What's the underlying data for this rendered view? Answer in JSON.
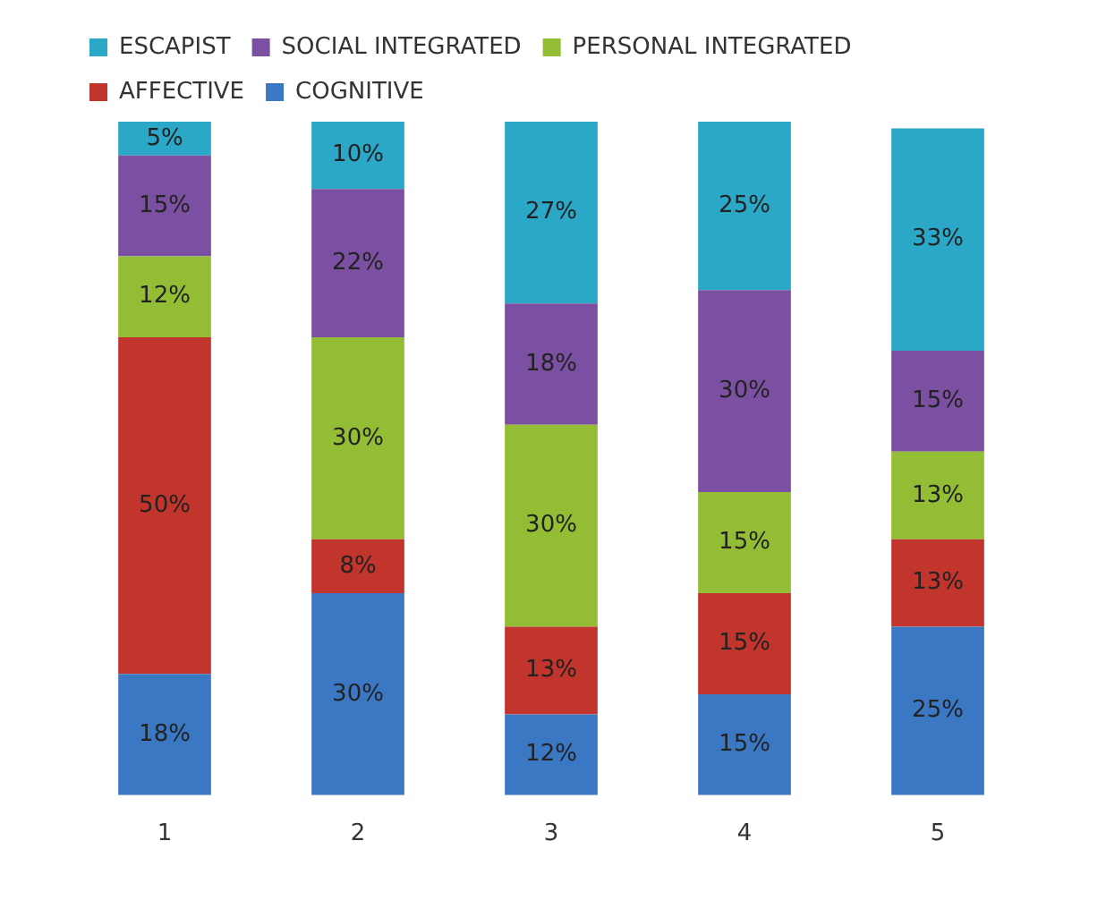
{
  "chart_data": {
    "type": "bar",
    "stacked": true,
    "categories": [
      "1",
      "2",
      "3",
      "4",
      "5"
    ],
    "legend": "top",
    "grid": false,
    "tick_labels": "x",
    "series": [
      {
        "name": "COGNITIVE",
        "color": "#3b78c4",
        "values": [
          18,
          30,
          12,
          15,
          25
        ],
        "value_labels": [
          "18%",
          "30%",
          "12%",
          "15%",
          "25%"
        ]
      },
      {
        "name": "AFFECTIVE",
        "color": "#c1352d",
        "values": [
          50,
          8,
          13,
          15,
          13
        ],
        "value_labels": [
          "50%",
          "8%",
          "13%",
          "15%",
          "13%"
        ]
      },
      {
        "name": "PERSONAL INTEGRATED",
        "color": "#93bd35",
        "values": [
          12,
          30,
          30,
          15,
          13
        ],
        "value_labels": [
          "12%",
          "30%",
          "30%",
          "15%",
          "13%"
        ]
      },
      {
        "name": "SOCIAL INTEGRATED",
        "color": "#7b4fa1",
        "values": [
          15,
          22,
          18,
          30,
          15
        ],
        "value_labels": [
          "15%",
          "22%",
          "18%",
          "30%",
          "15%"
        ]
      },
      {
        "name": "ESCAPIST",
        "color": "#2ba8c8",
        "values": [
          5,
          10,
          27,
          25,
          33
        ],
        "value_labels": [
          "5%",
          "10%",
          "27%",
          "25%",
          "33%"
        ]
      }
    ]
  }
}
